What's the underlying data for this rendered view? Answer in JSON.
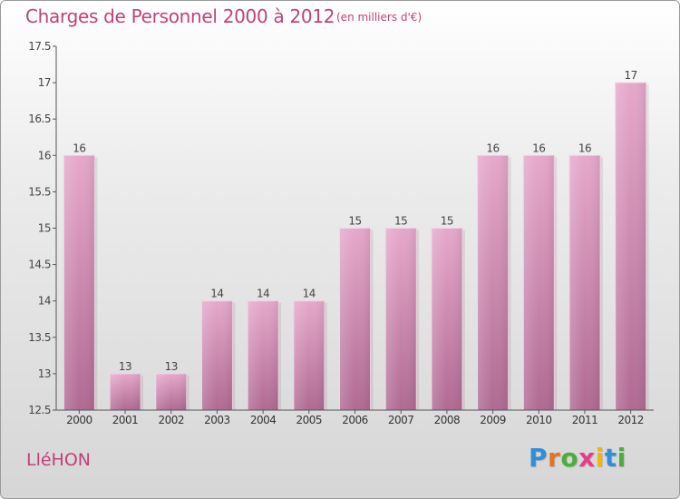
{
  "header": {
    "title": "Charges de Personnel 2000 à 2012",
    "subtitle": "(en milliers d'€)"
  },
  "footer": {
    "commune": "LléHON",
    "logo_letters": [
      "P",
      "r",
      "o",
      "x",
      "i",
      "t",
      "i"
    ],
    "logo_colors": [
      "#2f8fd8",
      "#e8731a",
      "#4aae3a",
      "#e63c8a",
      "#f2b600",
      "#2f8fd8",
      "#4aae3a"
    ]
  },
  "chart_data": {
    "type": "bar",
    "categories": [
      "2000",
      "2001",
      "2002",
      "2003",
      "2004",
      "2005",
      "2006",
      "2007",
      "2008",
      "2009",
      "2010",
      "2011",
      "2012"
    ],
    "values": [
      16,
      13,
      13,
      14,
      14,
      14,
      15,
      15,
      15,
      16,
      16,
      16,
      17
    ],
    "data_labels": [
      "16",
      "13",
      "13",
      "14",
      "14",
      "14",
      "15",
      "15",
      "15",
      "16",
      "16",
      "16",
      "17"
    ],
    "yticks": [
      12.5,
      13,
      13.5,
      14,
      14.5,
      15,
      15.5,
      16,
      16.5,
      17,
      17.5
    ],
    "ylim": [
      12.5,
      17.5
    ],
    "grid": false,
    "bar_color": "#d887b3"
  }
}
